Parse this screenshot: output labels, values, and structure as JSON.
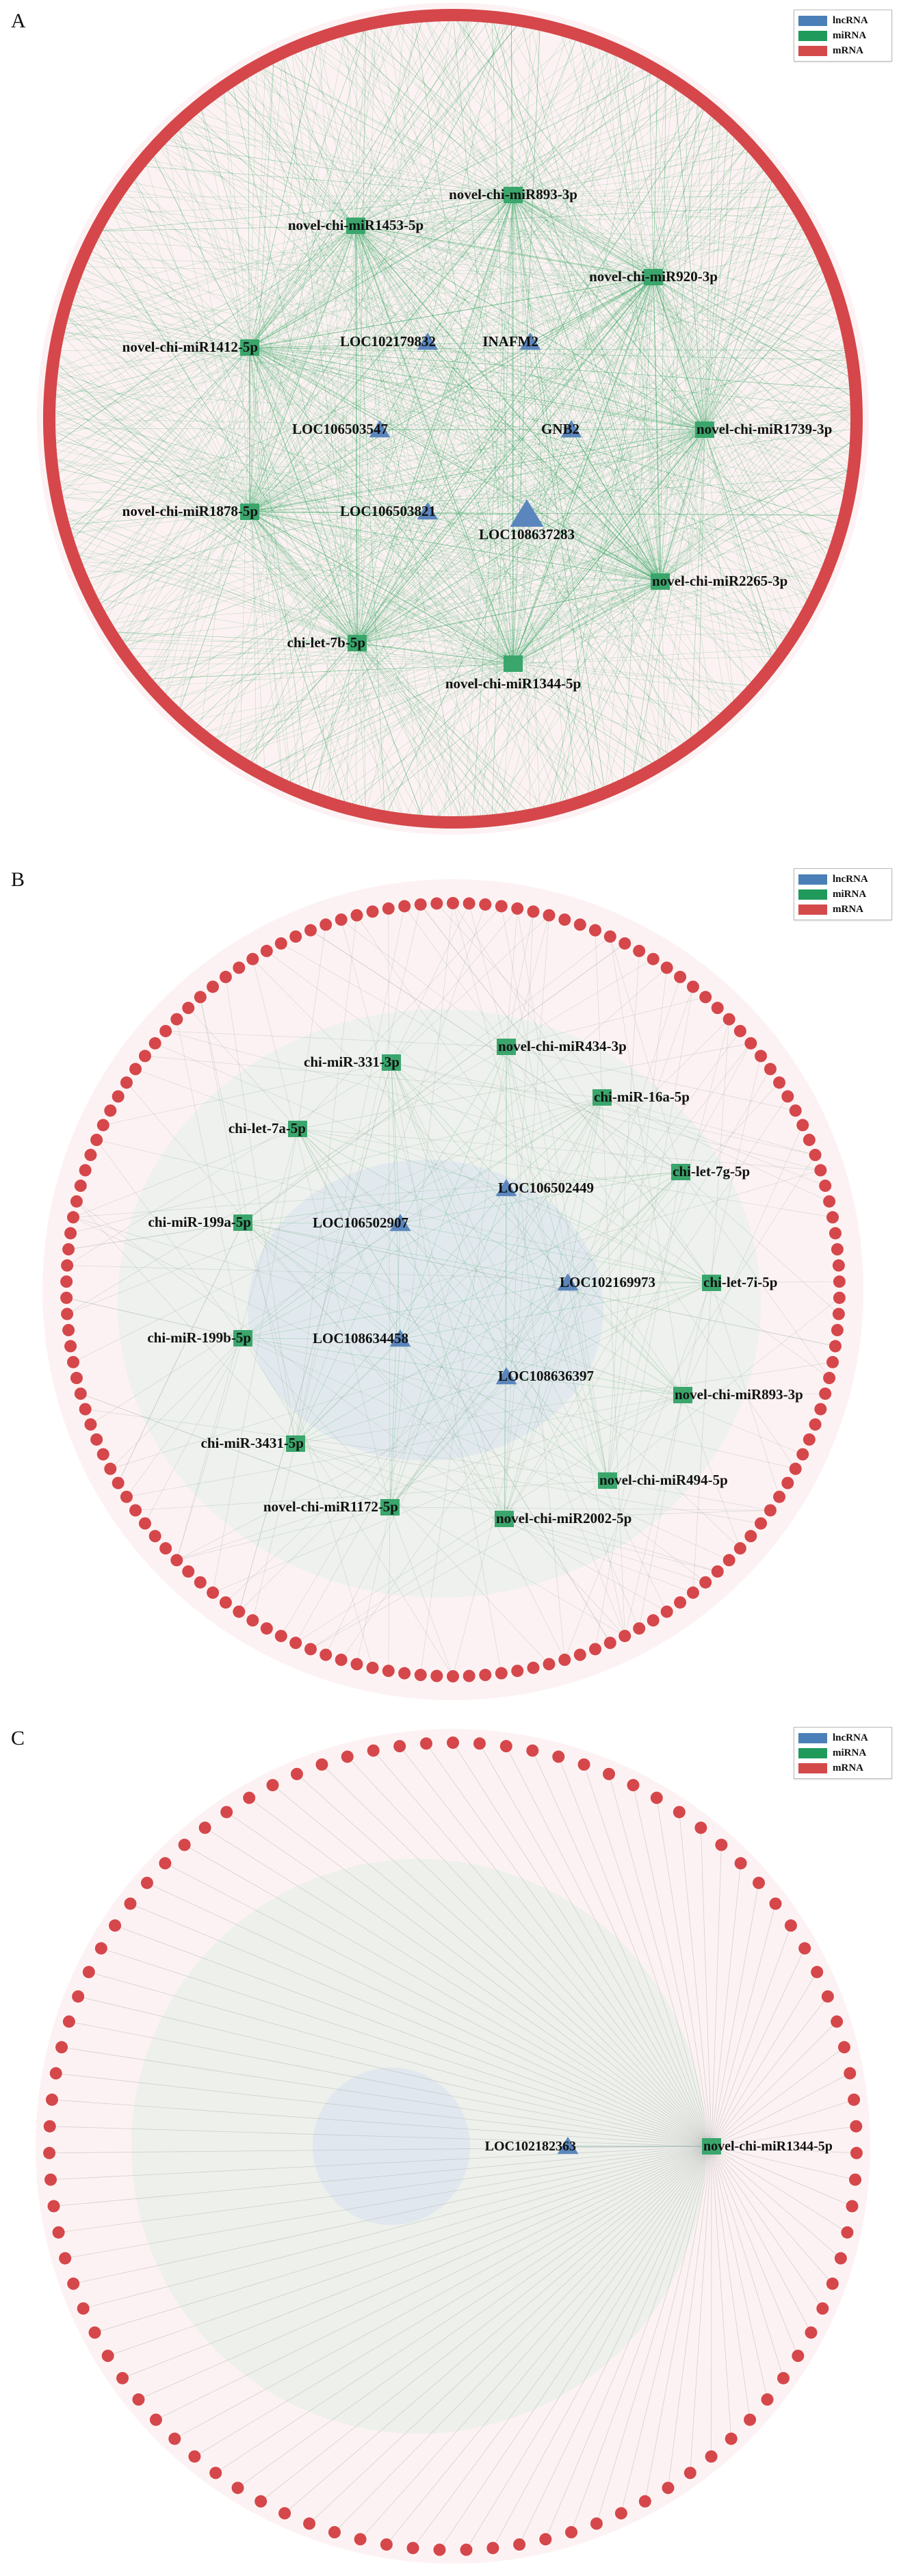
{
  "legend": {
    "items": [
      {
        "label": "lncRNA",
        "color": "#4a7fb8"
      },
      {
        "label": "miRNA",
        "color": "#1f9a5b"
      },
      {
        "label": "mRNA",
        "color": "#d44a4a"
      }
    ]
  },
  "colors": {
    "lncRNA": "#5b86bd",
    "miRNA": "#3aa66c",
    "mRNA": "#d5474a",
    "edge": "#2fa55e"
  },
  "panels": [
    {
      "label": "A",
      "mirna": [
        "novel-chi-miR893-3p",
        "novel-chi-miR1453-5p",
        "novel-chi-miR920-3p",
        "novel-chi-miR1412-5p",
        "novel-chi-miR1739-3p",
        "novel-chi-miR1878-5p",
        "novel-chi-miR2265-3p",
        "chi-let-7b-5p",
        "novel-chi-miR1344-5p"
      ],
      "lncrna": [
        "LOC102179832",
        "INAFM2",
        "LOC106503547",
        "GNB2",
        "LOC106503821",
        "LOC108637283"
      ]
    },
    {
      "label": "B",
      "mirna": [
        "novel-chi-miR434-3p",
        "chi-miR-331-3p",
        "chi-miR-16a-5p",
        "chi-let-7a-5p",
        "chi-let-7g-5p",
        "chi-miR-199a-5p",
        "chi-let-7i-5p",
        "chi-miR-199b-5p",
        "novel-chi-miR893-3p",
        "chi-miR-3431-5p",
        "novel-chi-miR494-5p",
        "novel-chi-miR1172-5p",
        "novel-chi-miR2002-5p"
      ],
      "lncrna": [
        "LOC106502449",
        "LOC106502907",
        "LOC102169973",
        "LOC108634458",
        "LOC108636397"
      ]
    },
    {
      "label": "C",
      "mirna": [
        "novel-chi-miR1344-5p"
      ],
      "lncrna": [
        "LOC102182363"
      ]
    }
  ]
}
